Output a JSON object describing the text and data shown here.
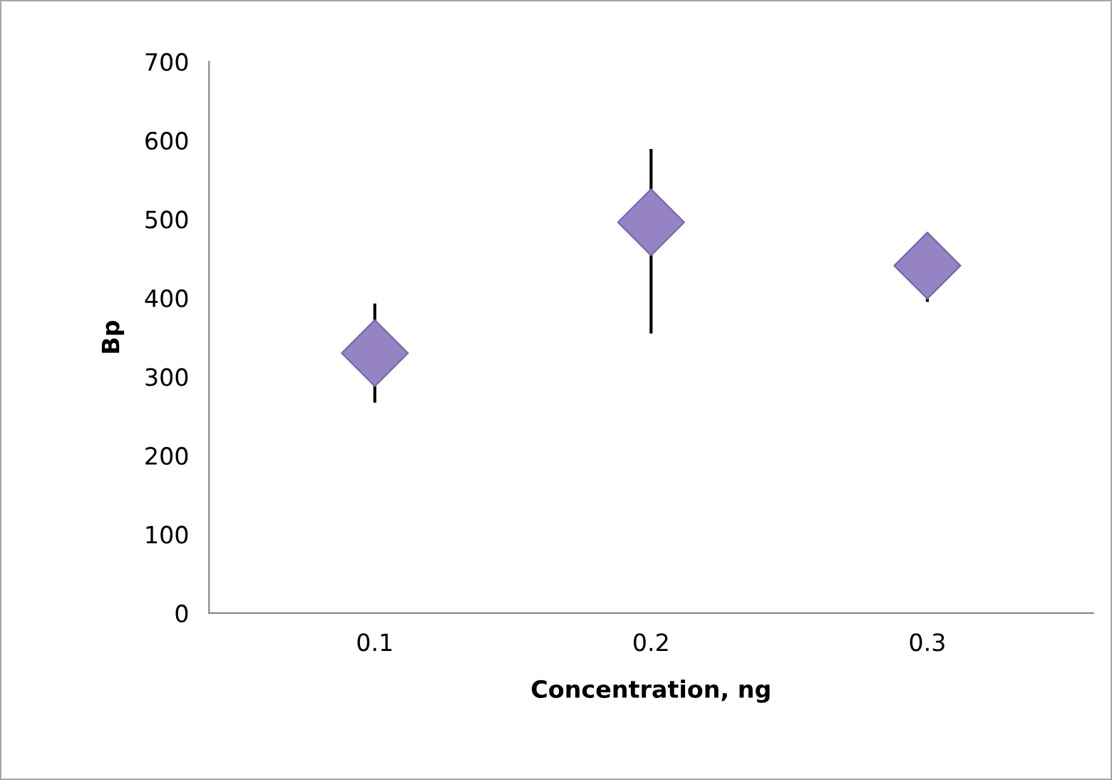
{
  "chart_data": {
    "type": "scatter",
    "xlabel": "Concentration, ng",
    "ylabel": "Bp",
    "categories": [
      "0.1",
      "0.2",
      "0.3"
    ],
    "series": [
      {
        "color": "#9683c4",
        "values": [
          330,
          496,
          441
        ],
        "errors": [
          [
            267,
            393
          ],
          [
            355,
            589
          ],
          [
            395,
            480
          ]
        ]
      }
    ],
    "ylim": [
      0,
      700
    ],
    "yticks": [
      0,
      100,
      200,
      300,
      400,
      500,
      600,
      700
    ],
    "marker": "diamond",
    "grid": false,
    "legend": false
  }
}
